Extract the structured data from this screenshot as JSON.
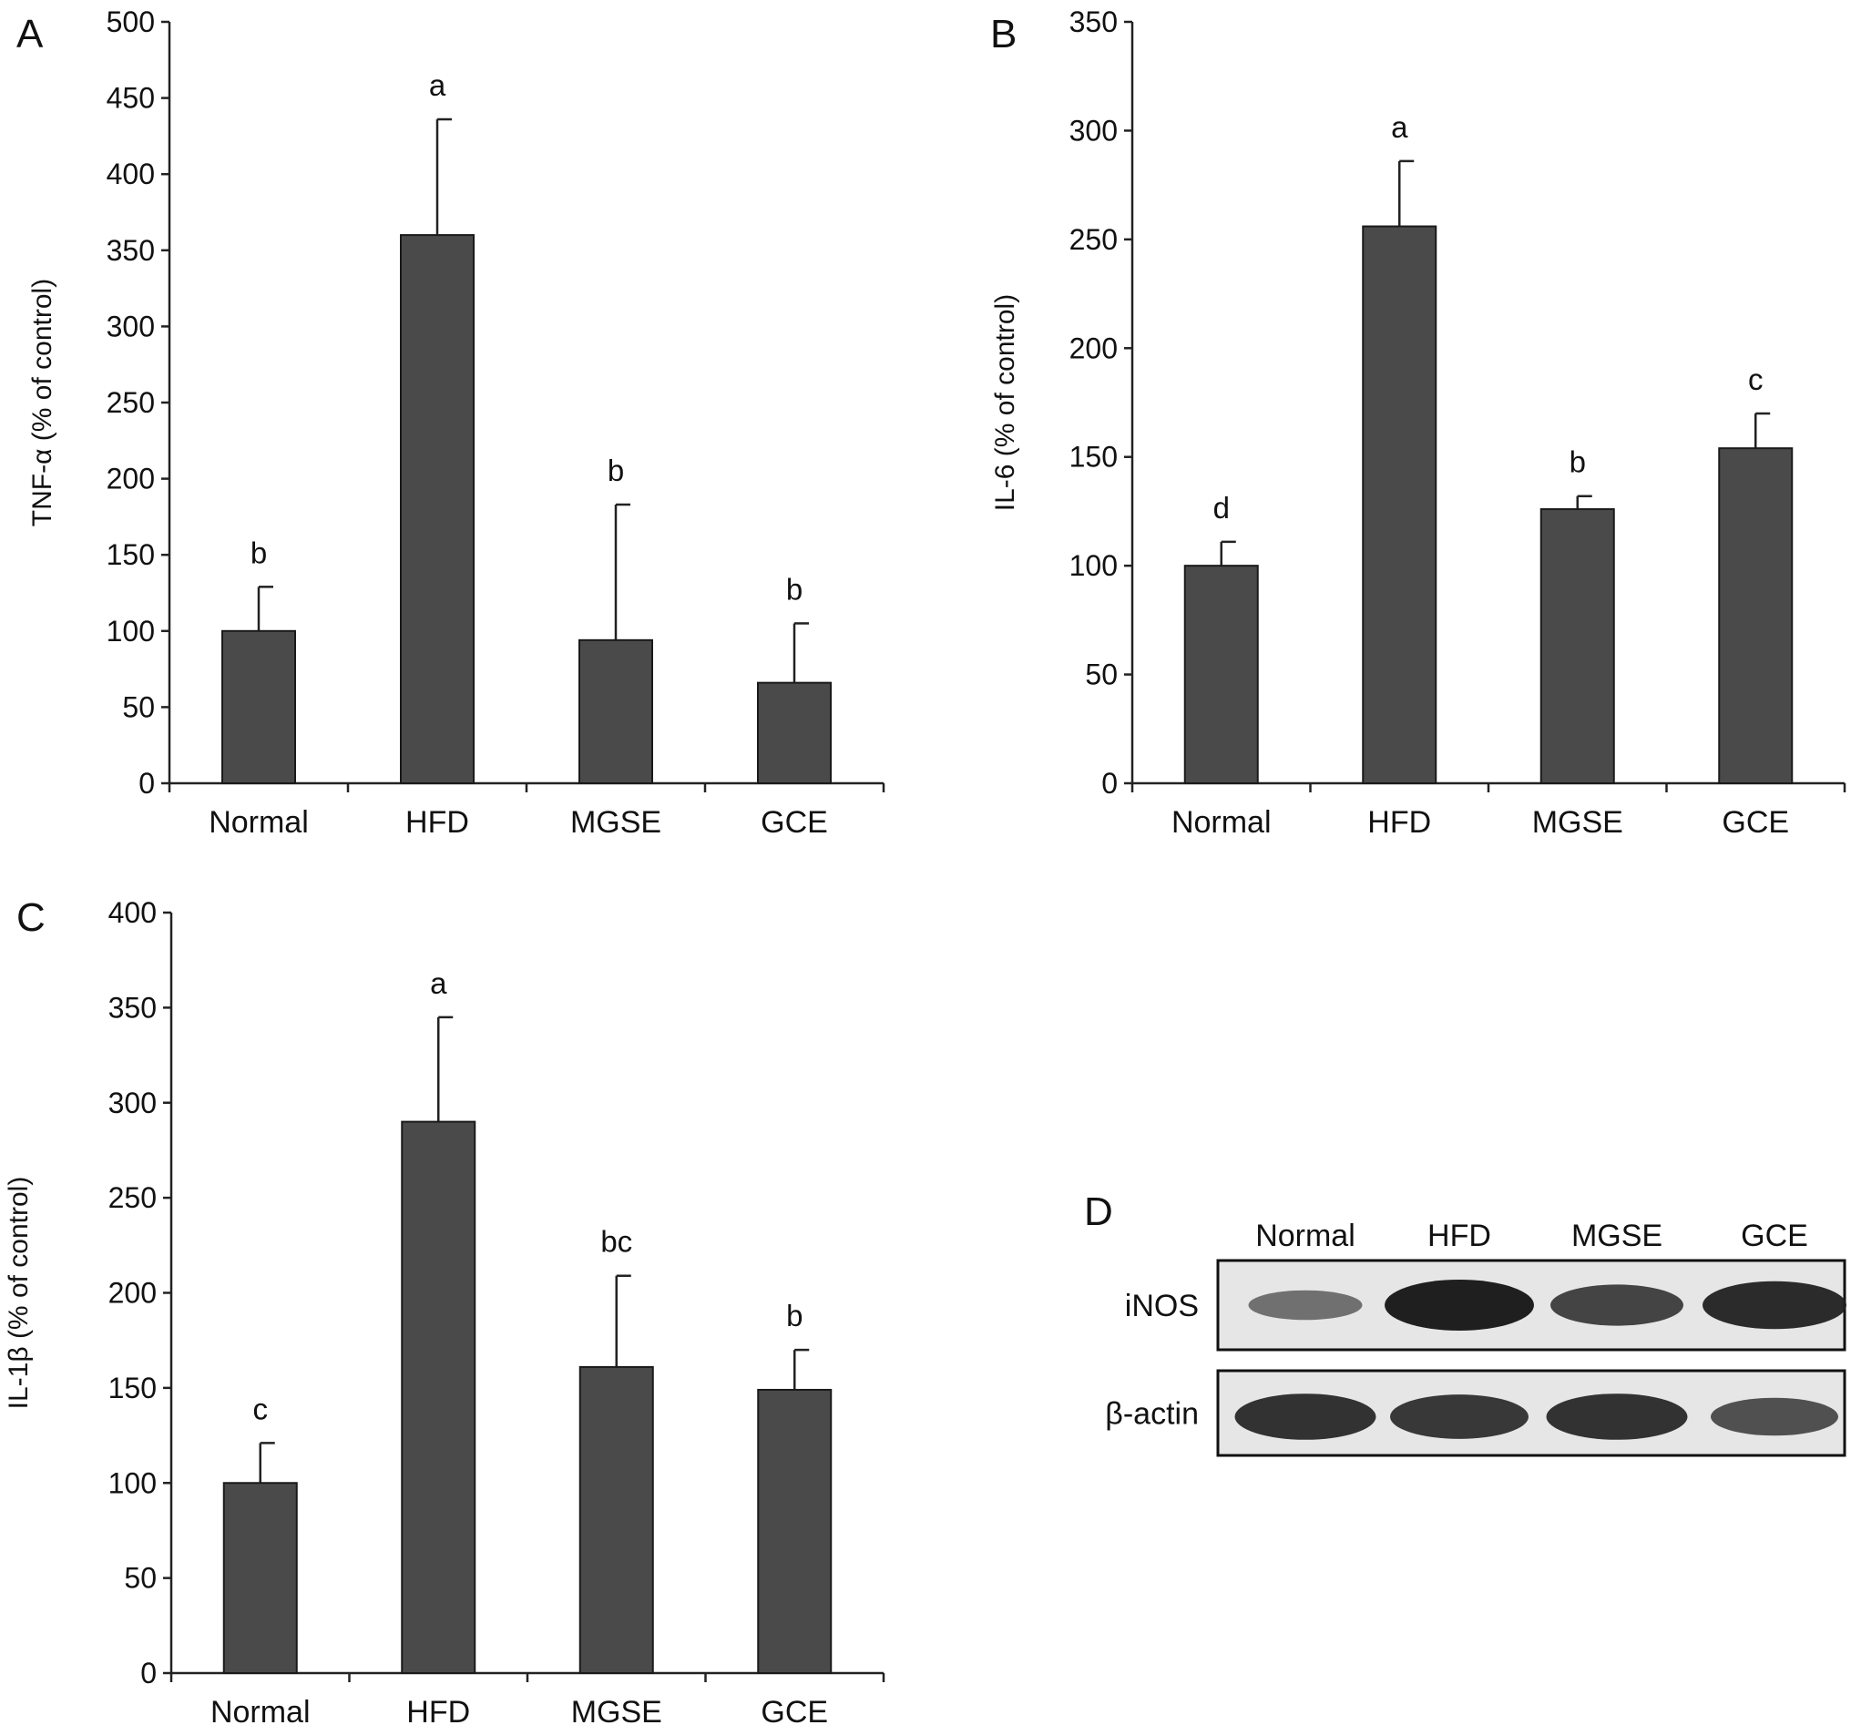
{
  "bar_color": "#4a4a4a",
  "axis_color": "#222222",
  "chart_data": [
    {
      "type": "bar",
      "panel": "A",
      "categories": [
        "Normal",
        "HFD",
        "MGSE",
        "GCE"
      ],
      "values": [
        100,
        360,
        94,
        66
      ],
      "errors": [
        29,
        76,
        89,
        39
      ],
      "sig_letters": [
        "b",
        "a",
        "b",
        "b"
      ],
      "ylabel": "TNF-α (% of control)",
      "ylim": [
        0,
        500
      ],
      "yticks": [
        0,
        50,
        100,
        150,
        200,
        250,
        300,
        350,
        400,
        450,
        500
      ],
      "grid": false
    },
    {
      "type": "bar",
      "panel": "B",
      "categories": [
        "Normal",
        "HFD",
        "MGSE",
        "GCE"
      ],
      "values": [
        100,
        256,
        126,
        154
      ],
      "errors": [
        11,
        30,
        6,
        16
      ],
      "sig_letters": [
        "d",
        "a",
        "b",
        "c"
      ],
      "ylabel": "IL-6 (% of control)",
      "ylim": [
        0,
        350
      ],
      "yticks": [
        0,
        50,
        100,
        150,
        200,
        250,
        300,
        350
      ],
      "grid": false
    },
    {
      "type": "bar",
      "panel": "C",
      "categories": [
        "Normal",
        "HFD",
        "MGSE",
        "GCE"
      ],
      "values": [
        100,
        290,
        161,
        149
      ],
      "errors": [
        21,
        55,
        48,
        21
      ],
      "sig_letters": [
        "c",
        "a",
        "bc",
        "b"
      ],
      "ylabel": "IL-1β (% of control)",
      "ylim": [
        0,
        400
      ],
      "yticks": [
        0,
        50,
        100,
        150,
        200,
        250,
        300,
        350,
        400
      ],
      "grid": false
    }
  ],
  "blot": {
    "panel": "D",
    "lanes": [
      "Normal",
      "HFD",
      "MGSE",
      "GCE"
    ],
    "rows": [
      {
        "label": "iNOS",
        "intensity": [
          0.35,
          1.0,
          0.7,
          0.9
        ]
      },
      {
        "label": "β-actin",
        "intensity": [
          0.85,
          0.8,
          0.85,
          0.6
        ]
      }
    ]
  }
}
